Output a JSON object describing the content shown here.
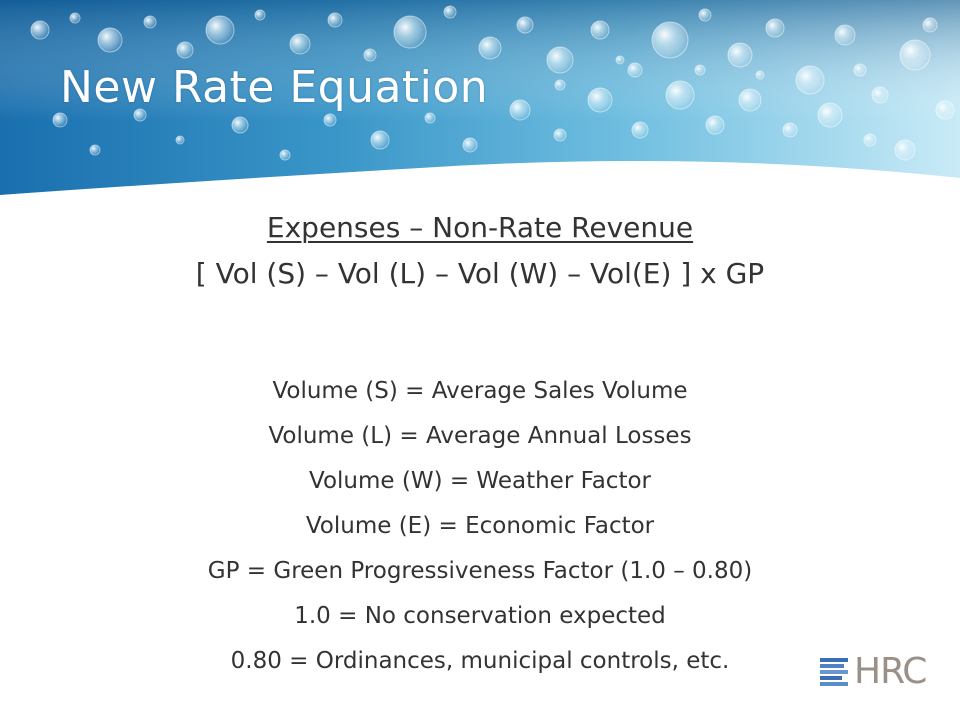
{
  "slide": {
    "title": "New Rate Equation",
    "equation": {
      "numerator": "Expenses – Non-Rate Revenue",
      "denominator": "[ Vol (S) – Vol (L) – Vol (W) – Vol(E) ] x GP"
    },
    "definitions": [
      "Volume (S) = Average Sales Volume",
      "Volume (L) = Average Annual Losses",
      "Volume (W) = Weather Factor",
      "Volume (E) = Economic Factor",
      "GP = Green Progressiveness Factor (1.0 – 0.80)",
      "1.0 = No conservation expected",
      "0.80 = Ordinances, municipal controls, etc."
    ],
    "logo": {
      "text": "HRC"
    }
  },
  "colors": {
    "banner_dark": "#1a6fae",
    "banner_light": "#bfe6f6",
    "text": "#333333",
    "title": "#ffffff",
    "logo_blue": "#3b6eb5",
    "logo_gray": "#9b9087"
  },
  "icons": [
    "water-bubbles-banner",
    "hrc-logo-mark"
  ]
}
